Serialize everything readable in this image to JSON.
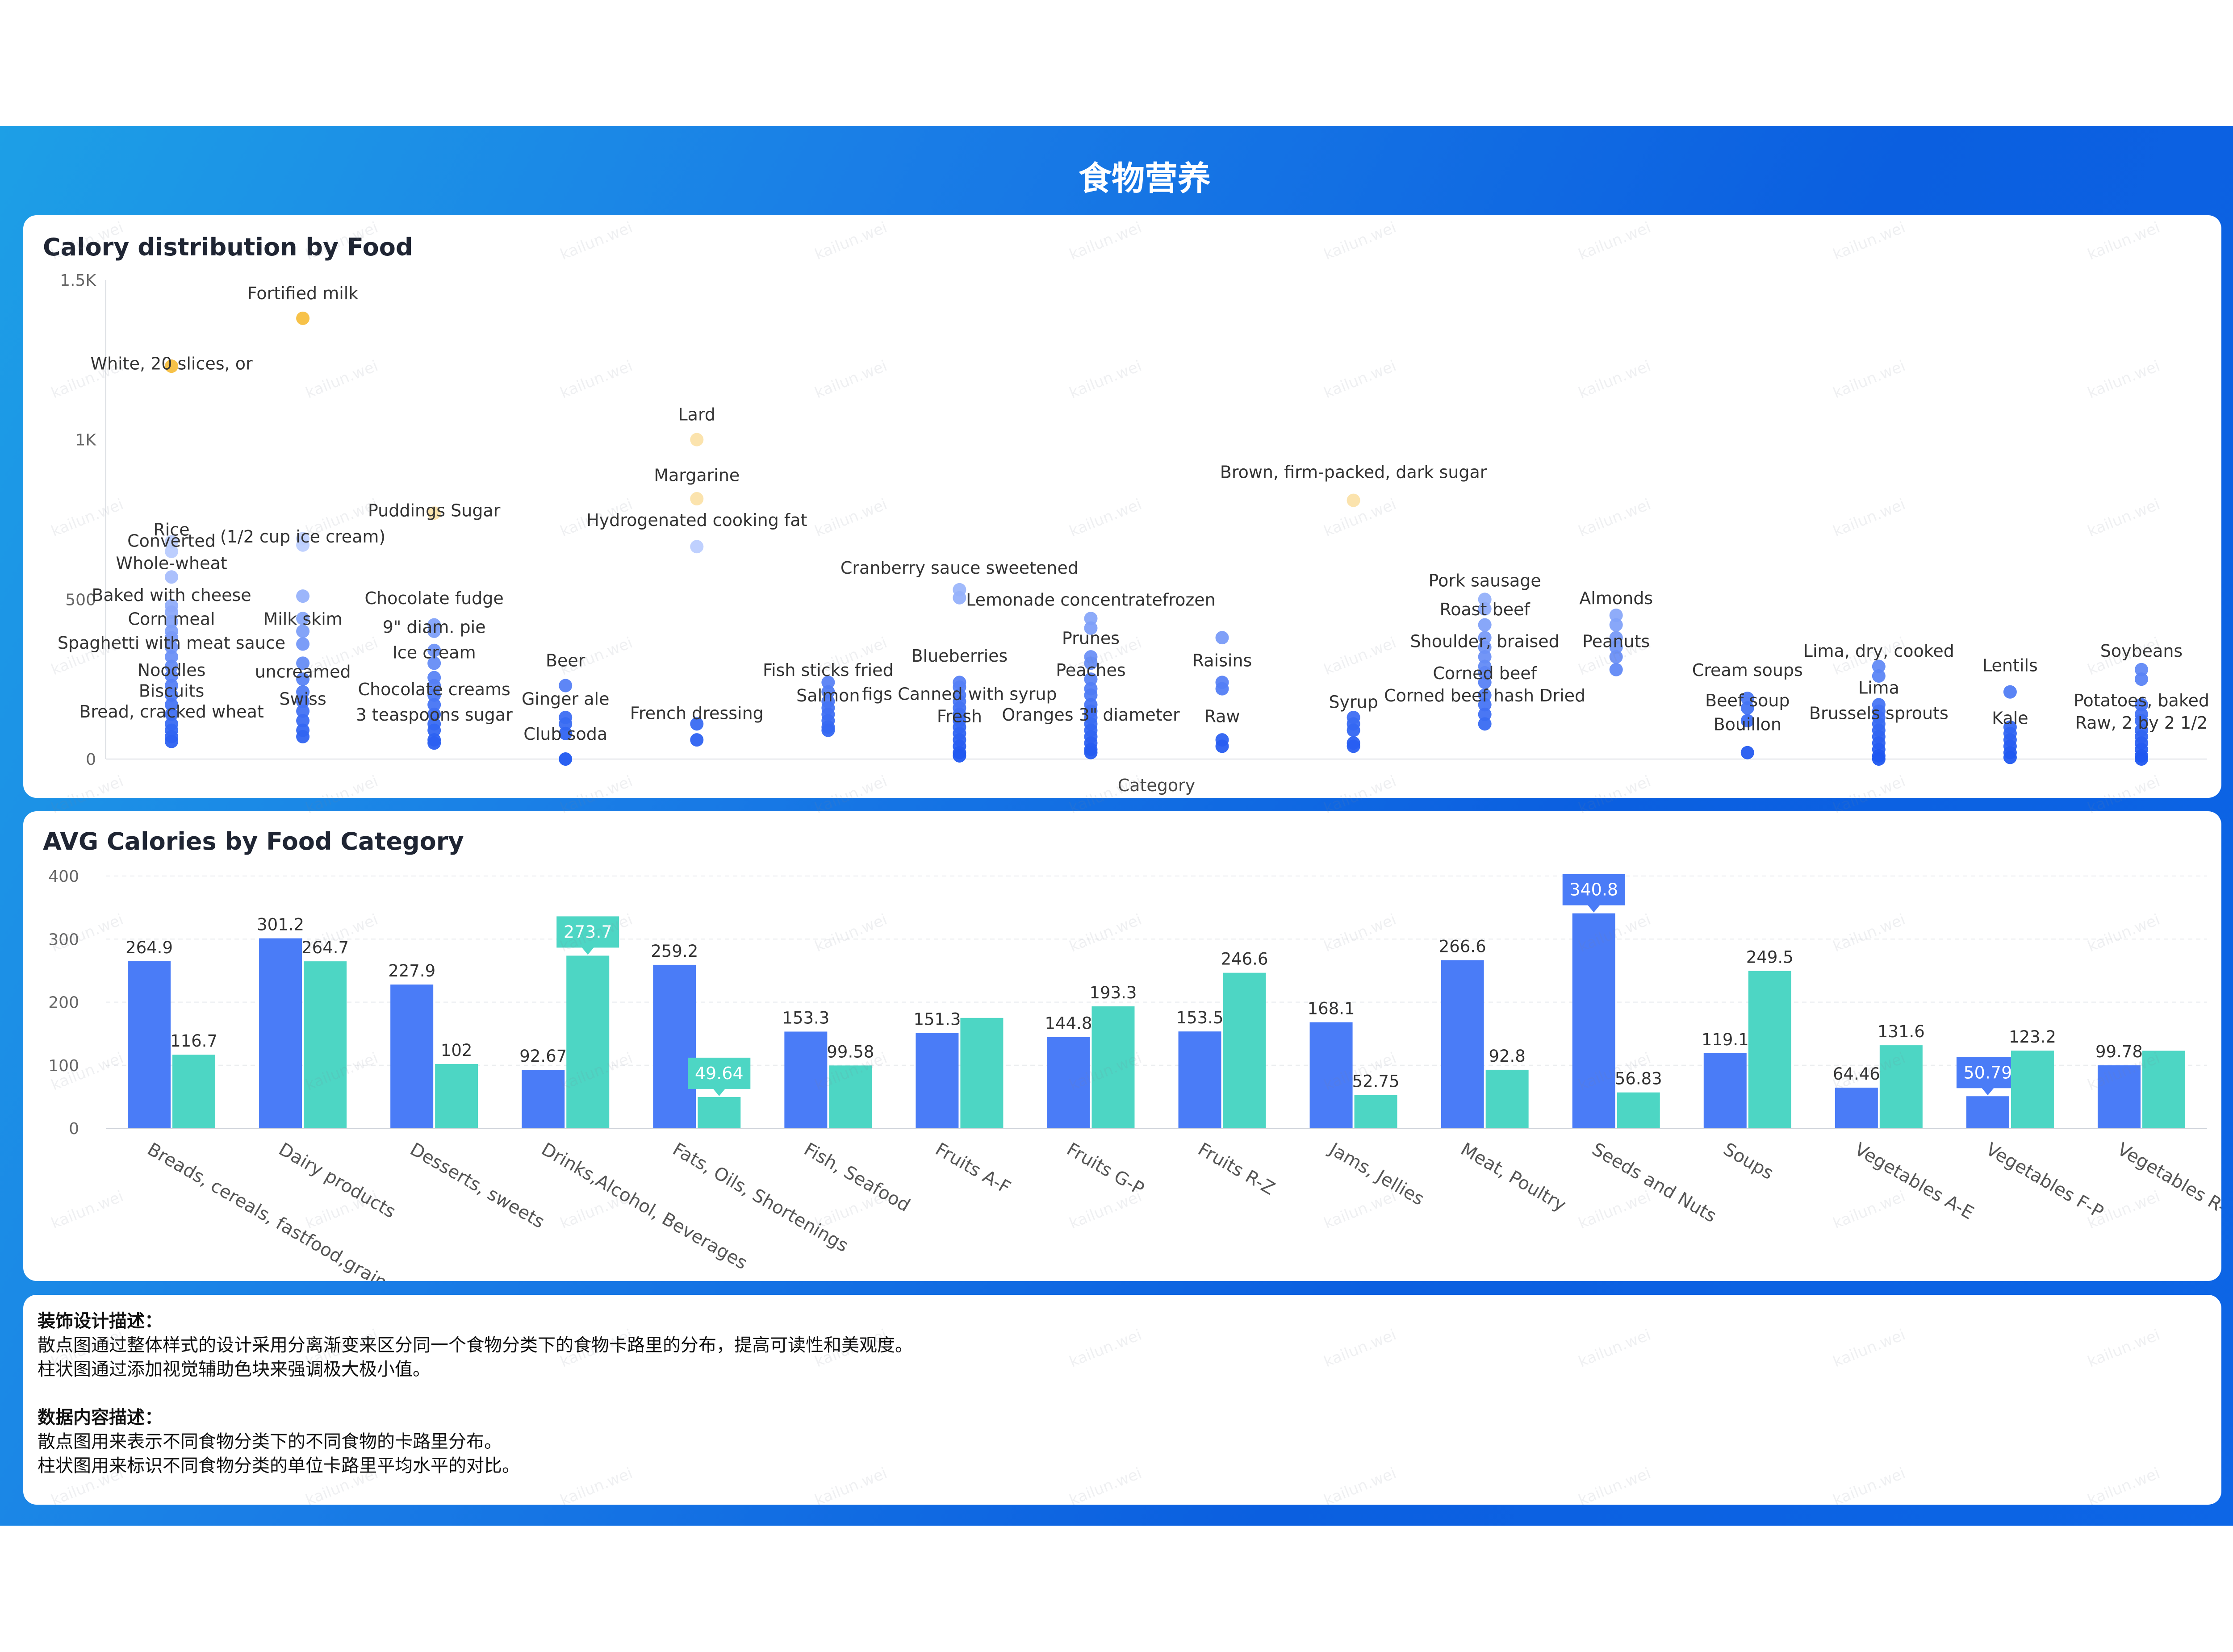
{
  "page_title": "食物营养",
  "colors": {
    "blue": "#4a7cf7",
    "teal": "#4dd6c4",
    "scatter_dark": "#1f57f0",
    "scatter_light": "#c9d8ff",
    "gold": "#f7bf3f"
  },
  "chart_data": [
    {
      "type": "scatter",
      "title": "Calory distribution by Food",
      "xlabel": "Category",
      "ylabel": "",
      "ylim": [
        0,
        1500
      ],
      "yticks": [
        "0",
        "500",
        "1K",
        "1.5K"
      ],
      "ytick_values": [
        0,
        500,
        1000,
        1500
      ],
      "categories": [
        "Breads, cereals, fastfood,grains",
        "Dairy products",
        "Desserts, sweets",
        "Drinks,Alcohol, Beverages",
        "Fats, Oils, Shortenings",
        "Fish, Seafood",
        "Fruits A-F",
        "Fruits G-P",
        "Fruits R-Z",
        "Jams, Jellies",
        "Meat, Poultry",
        "Seeds and Nuts",
        "Soups",
        "Vegetables A-E",
        "Vegetables F-P",
        "Vegetables R-Z"
      ],
      "labels": [
        {
          "c": 0,
          "y": 1220,
          "text": "White, 20 slices, or"
        },
        {
          "c": 0,
          "y": 700,
          "text": "Rice"
        },
        {
          "c": 0,
          "y": 665,
          "text": "Converted"
        },
        {
          "c": 0,
          "y": 595,
          "text": "Whole-wheat"
        },
        {
          "c": 0,
          "y": 495,
          "text": "Baked with cheese"
        },
        {
          "c": 0,
          "y": 420,
          "text": "Corn meal"
        },
        {
          "c": 0,
          "y": 345,
          "text": "Spaghetti with meat sauce"
        },
        {
          "c": 0,
          "y": 260,
          "text": "Noodles"
        },
        {
          "c": 0,
          "y": 195,
          "text": "Biscuits"
        },
        {
          "c": 0,
          "y": 130,
          "text": "Bread, cracked wheat"
        },
        {
          "c": 1,
          "y": 1440,
          "text": "Fortified milk"
        },
        {
          "c": 1,
          "y": 678,
          "text": "(1/2 cup ice cream)"
        },
        {
          "c": 1,
          "y": 420,
          "text": "Milk skim"
        },
        {
          "c": 1,
          "y": 255,
          "text": "uncreamed"
        },
        {
          "c": 1,
          "y": 170,
          "text": "Swiss"
        },
        {
          "c": 2,
          "y": 760,
          "text": "Puddings Sugar"
        },
        {
          "c": 2,
          "y": 485,
          "text": "Chocolate fudge"
        },
        {
          "c": 2,
          "y": 395,
          "text": "9\" diam. pie"
        },
        {
          "c": 2,
          "y": 315,
          "text": "Ice cream"
        },
        {
          "c": 2,
          "y": 200,
          "text": "Chocolate creams"
        },
        {
          "c": 2,
          "y": 120,
          "text": "3 teaspoons sugar"
        },
        {
          "c": 3,
          "y": 290,
          "text": "Beer"
        },
        {
          "c": 3,
          "y": 170,
          "text": "Ginger ale"
        },
        {
          "c": 3,
          "y": 60,
          "text": "Club soda"
        },
        {
          "c": 4,
          "y": 1060,
          "text": "Lard"
        },
        {
          "c": 4,
          "y": 870,
          "text": "Margarine"
        },
        {
          "c": 4,
          "y": 730,
          "text": "Hydrogenated cooking fat"
        },
        {
          "c": 4,
          "y": 125,
          "text": "French dressing"
        },
        {
          "c": 5,
          "y": 260,
          "text": "Fish sticks fried"
        },
        {
          "c": 5,
          "y": 180,
          "text": "Salmon"
        },
        {
          "c": 6,
          "y": 580,
          "text": "Cranberry sauce sweetened"
        },
        {
          "c": 6,
          "y": 305,
          "text": "Blueberries"
        },
        {
          "c": 6,
          "y": 185,
          "text": "figs Canned with syrup"
        },
        {
          "c": 6,
          "y": 115,
          "text": "Fresh"
        },
        {
          "c": 7,
          "y": 480,
          "text": "Lemonade concentratefrozen"
        },
        {
          "c": 7,
          "y": 360,
          "text": "Prunes"
        },
        {
          "c": 7,
          "y": 260,
          "text": "Peaches"
        },
        {
          "c": 7,
          "y": 120,
          "text": "Oranges 3\" diameter"
        },
        {
          "c": 8,
          "y": 290,
          "text": "Raisins"
        },
        {
          "c": 8,
          "y": 115,
          "text": "Raw"
        },
        {
          "c": 9,
          "y": 880,
          "text": "Brown, firm-packed, dark sugar"
        },
        {
          "c": 9,
          "y": 160,
          "text": "Syrup"
        },
        {
          "c": 10,
          "y": 540,
          "text": "Pork sausage"
        },
        {
          "c": 10,
          "y": 450,
          "text": "Roast beef"
        },
        {
          "c": 10,
          "y": 350,
          "text": "Shoulder, braised"
        },
        {
          "c": 10,
          "y": 250,
          "text": "Corned beef"
        },
        {
          "c": 10,
          "y": 180,
          "text": "Corned beef hash Dried"
        },
        {
          "c": 11,
          "y": 485,
          "text": "Almonds"
        },
        {
          "c": 11,
          "y": 350,
          "text": "Peanuts"
        },
        {
          "c": 12,
          "y": 260,
          "text": "Cream soups"
        },
        {
          "c": 12,
          "y": 165,
          "text": "Beef soup"
        },
        {
          "c": 12,
          "y": 90,
          "text": "Bouillon"
        },
        {
          "c": 13,
          "y": 320,
          "text": "Lima, dry, cooked"
        },
        {
          "c": 13,
          "y": 205,
          "text": "Lima"
        },
        {
          "c": 13,
          "y": 125,
          "text": "Brussels sprouts"
        },
        {
          "c": 14,
          "y": 275,
          "text": "Lentils"
        },
        {
          "c": 14,
          "y": 110,
          "text": "Kale"
        },
        {
          "c": 15,
          "y": 320,
          "text": "Soybeans"
        },
        {
          "c": 15,
          "y": 165,
          "text": "Potatoes, baked"
        },
        {
          "c": 15,
          "y": 95,
          "text": "Raw, 2 by 2 1/2"
        }
      ],
      "points": [
        [
          0,
          1230
        ],
        [
          0,
          680
        ],
        [
          0,
          650
        ],
        [
          0,
          570
        ],
        [
          0,
          480
        ],
        [
          0,
          460
        ],
        [
          0,
          430
        ],
        [
          0,
          400
        ],
        [
          0,
          380
        ],
        [
          0,
          350
        ],
        [
          0,
          320
        ],
        [
          0,
          290
        ],
        [
          0,
          260
        ],
        [
          0,
          230
        ],
        [
          0,
          200
        ],
        [
          0,
          170
        ],
        [
          0,
          140
        ],
        [
          0,
          110
        ],
        [
          0,
          90
        ],
        [
          0,
          70
        ],
        [
          0,
          55
        ],
        [
          1,
          1380
        ],
        [
          1,
          690
        ],
        [
          1,
          670
        ],
        [
          1,
          510
        ],
        [
          1,
          440
        ],
        [
          1,
          400
        ],
        [
          1,
          360
        ],
        [
          1,
          300
        ],
        [
          1,
          250
        ],
        [
          1,
          210
        ],
        [
          1,
          180
        ],
        [
          1,
          150
        ],
        [
          1,
          120
        ],
        [
          1,
          90
        ],
        [
          1,
          70
        ],
        [
          2,
          770
        ],
        [
          2,
          420
        ],
        [
          2,
          400
        ],
        [
          2,
          340
        ],
        [
          2,
          300
        ],
        [
          2,
          255
        ],
        [
          2,
          230
        ],
        [
          2,
          200
        ],
        [
          2,
          170
        ],
        [
          2,
          140
        ],
        [
          2,
          110
        ],
        [
          2,
          90
        ],
        [
          2,
          60
        ],
        [
          2,
          50
        ],
        [
          3,
          230
        ],
        [
          3,
          130
        ],
        [
          3,
          110
        ],
        [
          3,
          80
        ],
        [
          3,
          0
        ],
        [
          4,
          1000
        ],
        [
          4,
          815
        ],
        [
          4,
          665
        ],
        [
          4,
          110
        ],
        [
          4,
          60
        ],
        [
          5,
          240
        ],
        [
          5,
          210
        ],
        [
          5,
          180
        ],
        [
          5,
          160
        ],
        [
          5,
          140
        ],
        [
          5,
          120
        ],
        [
          5,
          100
        ],
        [
          5,
          90
        ],
        [
          6,
          530
        ],
        [
          6,
          505
        ],
        [
          6,
          240
        ],
        [
          6,
          225
        ],
        [
          6,
          200
        ],
        [
          6,
          180
        ],
        [
          6,
          160
        ],
        [
          6,
          140
        ],
        [
          6,
          120
        ],
        [
          6,
          100
        ],
        [
          6,
          80
        ],
        [
          6,
          60
        ],
        [
          6,
          40
        ],
        [
          6,
          20
        ],
        [
          6,
          10
        ],
        [
          7,
          440
        ],
        [
          7,
          410
        ],
        [
          7,
          320
        ],
        [
          7,
          300
        ],
        [
          7,
          250
        ],
        [
          7,
          220
        ],
        [
          7,
          200
        ],
        [
          7,
          170
        ],
        [
          7,
          150
        ],
        [
          7,
          130
        ],
        [
          7,
          110
        ],
        [
          7,
          90
        ],
        [
          7,
          70
        ],
        [
          7,
          50
        ],
        [
          7,
          30
        ],
        [
          7,
          20
        ],
        [
          8,
          380
        ],
        [
          8,
          240
        ],
        [
          8,
          220
        ],
        [
          8,
          60
        ],
        [
          8,
          40
        ],
        [
          9,
          810
        ],
        [
          9,
          130
        ],
        [
          9,
          110
        ],
        [
          9,
          90
        ],
        [
          9,
          50
        ],
        [
          9,
          40
        ],
        [
          10,
          500
        ],
        [
          10,
          470
        ],
        [
          10,
          420
        ],
        [
          10,
          380
        ],
        [
          10,
          350
        ],
        [
          10,
          320
        ],
        [
          10,
          290
        ],
        [
          10,
          270
        ],
        [
          10,
          240
        ],
        [
          10,
          200
        ],
        [
          10,
          170
        ],
        [
          10,
          140
        ],
        [
          10,
          110
        ],
        [
          11,
          450
        ],
        [
          11,
          420
        ],
        [
          11,
          380
        ],
        [
          11,
          350
        ],
        [
          11,
          320
        ],
        [
          11,
          280
        ],
        [
          12,
          190
        ],
        [
          12,
          160
        ],
        [
          12,
          120
        ],
        [
          12,
          20
        ],
        [
          13,
          290
        ],
        [
          13,
          260
        ],
        [
          13,
          170
        ],
        [
          13,
          150
        ],
        [
          13,
          130
        ],
        [
          13,
          110
        ],
        [
          13,
          90
        ],
        [
          13,
          70
        ],
        [
          13,
          50
        ],
        [
          13,
          30
        ],
        [
          13,
          10
        ],
        [
          13,
          0
        ],
        [
          14,
          210
        ],
        [
          14,
          100
        ],
        [
          14,
          80
        ],
        [
          14,
          60
        ],
        [
          14,
          40
        ],
        [
          14,
          20
        ],
        [
          14,
          5
        ],
        [
          15,
          280
        ],
        [
          15,
          250
        ],
        [
          15,
          170
        ],
        [
          15,
          140
        ],
        [
          15,
          120
        ],
        [
          15,
          90
        ],
        [
          15,
          70
        ],
        [
          15,
          50
        ],
        [
          15,
          30
        ],
        [
          15,
          10
        ],
        [
          15,
          0
        ]
      ]
    },
    {
      "type": "bar",
      "title": "AVG Calories by Food Category",
      "xlabel": "",
      "ylabel": "",
      "ylim": [
        0,
        400
      ],
      "yticks": [
        "0",
        "100",
        "200",
        "300",
        "400"
      ],
      "ytick_values": [
        0,
        100,
        200,
        300,
        400
      ],
      "categories": [
        "Breads, cereals, fastfood,grains",
        "Dairy products",
        "Desserts, sweets",
        "Drinks,Alcohol, Beverages",
        "Fats, Oils, Shortenings",
        "Fish, Seafood",
        "Fruits A-F",
        "Fruits G-P",
        "Fruits R-Z",
        "Jams, Jellies",
        "Meat, Poultry",
        "Seeds and Nuts",
        "Soups",
        "Vegetables A-E",
        "Vegetables F-P",
        "Vegetables R-Z"
      ],
      "series": [
        {
          "values": [
            264.9,
            301.2,
            227.9,
            92.67,
            259.2,
            153.3,
            151.3,
            144.8,
            153.5,
            168.1,
            266.6,
            340.8,
            119.1,
            64.46,
            50.79,
            99.78
          ],
          "labels": [
            "264.9",
            "301.2",
            "227.9",
            "92.67",
            "259.2",
            "153.3",
            "151.3",
            "144.8",
            "153.5",
            "168.1",
            "266.6",
            "340.8",
            "119.1",
            "64.46",
            "50.79",
            "99.78"
          ],
          "highlight_max": 11,
          "highlight_min": 14
        },
        {
          "values": [
            116.7,
            264.7,
            102,
            273.7,
            49.64,
            99.58,
            175,
            193.3,
            246.6,
            52.75,
            92.8,
            56.83,
            249.5,
            131.6,
            123.2,
            123
          ],
          "labels": [
            "116.7",
            "264.7",
            "102",
            "273.7",
            "49.64",
            "99.58",
            "",
            "193.3",
            "246.6",
            "52.75",
            "92.8",
            "56.83",
            "249.5",
            "131.6",
            "123.2",
            ""
          ],
          "highlight_max": 3,
          "highlight_min": 4
        }
      ]
    }
  ],
  "description": {
    "design_heading": "装饰设计描述：",
    "design_line1": "散点图通过整体样式的设计采用分离渐变来区分同一个食物分类下的食物卡路里的分布，提高可读性和美观度。",
    "design_line2": "柱状图通过添加视觉辅助色块来强调极大极小值。",
    "data_heading": "数据内容描述：",
    "data_line1": "散点图用来表示不同食物分类下的不同食物的卡路里分布。",
    "data_line2": "柱状图用来标识不同食物分类的单位卡路里平均水平的对比。"
  },
  "watermark": "kailun.wei"
}
